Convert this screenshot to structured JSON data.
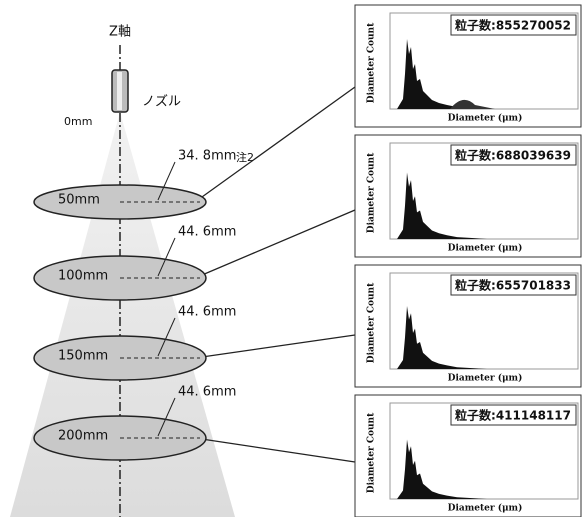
{
  "z_axis": "Z軸",
  "nozzle": "ノズル",
  "origin": "0mm",
  "levels": [
    {
      "distance": "50mm",
      "diameter": "34. 8mm",
      "note": "注2"
    },
    {
      "distance": "100mm",
      "diameter": "44. 6mm"
    },
    {
      "distance": "150mm",
      "diameter": "44. 6mm"
    },
    {
      "distance": "200mm",
      "diameter": "44. 6mm"
    }
  ],
  "panels": [
    {
      "y_label": "Diameter Count",
      "x_label": "Diameter (μm)",
      "particle_count": "粒子数:855270052"
    },
    {
      "y_label": "Diameter Count",
      "x_label": "Diameter (μm)",
      "particle_count": "粒子数:688039639"
    },
    {
      "y_label": "Diameter Count",
      "x_label": "Diameter (μm)",
      "particle_count": "粒子数:655701833"
    },
    {
      "y_label": "Diameter Count",
      "x_label": "Diameter (μm)",
      "particle_count": "粒子数:411148117"
    }
  ]
}
